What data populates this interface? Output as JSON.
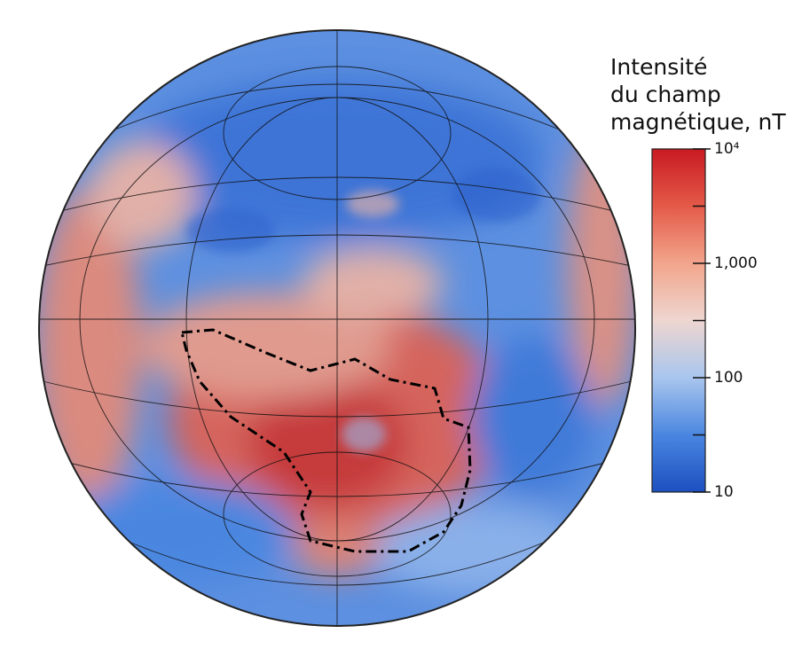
{
  "legend": {
    "title_lines": [
      "Intensité",
      "du champ",
      "magnétique, nT"
    ],
    "scale": "log",
    "lim": [
      10,
      10000
    ],
    "ticks": [
      {
        "value": 10000,
        "label": "10⁴"
      },
      {
        "value": 1000,
        "label": "1,000"
      },
      100,
      10
    ],
    "minor_ticks": [
      3162,
      316,
      31.6
    ],
    "colors": [
      "#1c4fc0",
      "#4a86e0",
      "#a9c6ee",
      "#eed6d0",
      "#f2a58c",
      "#e45a48",
      "#c81a22"
    ]
  }
}
